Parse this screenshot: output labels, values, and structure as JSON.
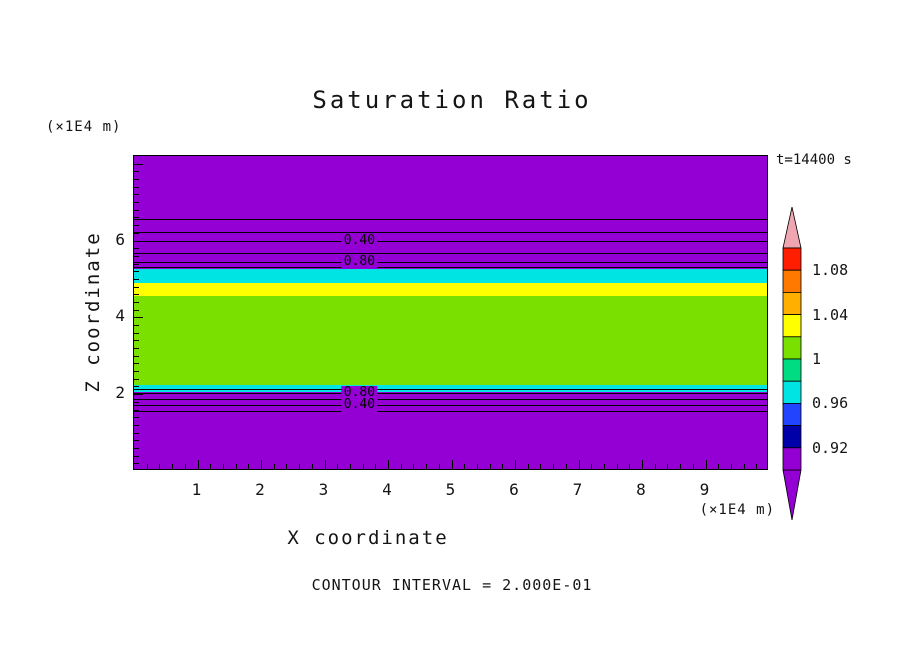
{
  "chart_data": {
    "type": "heatmap",
    "title": "Saturation Ratio",
    "xlabel": "X coordinate",
    "ylabel": "Z coordinate",
    "x_units": "(×1E4 m)",
    "z_units": "(×1E4 m)",
    "time_annotation": "t=14400 s",
    "contour_interval_text": "CONTOUR INTERVAL = 2.000E-01",
    "contour_interval": 0.2,
    "xlim": [
      0,
      10
    ],
    "zlim": [
      0,
      8.2
    ],
    "x_ticks": [
      1,
      2,
      3,
      4,
      5,
      6,
      7,
      8,
      9
    ],
    "z_ticks": [
      2,
      4,
      6
    ],
    "minor_tick_step": 0.2,
    "grid": false,
    "bands": [
      {
        "z_from": 5.25,
        "z_to": 8.2,
        "value": "< 0.90",
        "color": "#9400D3"
      },
      {
        "z_from": 4.9,
        "z_to": 5.25,
        "value": "0.96 - 0.98",
        "color": "#00E4E4"
      },
      {
        "z_from": 4.55,
        "z_to": 4.9,
        "value": "1.02 - 1.04",
        "color": "#FFFF00"
      },
      {
        "z_from": 2.25,
        "z_to": 4.55,
        "value": "1.00 - 1.02",
        "color": "#79E000"
      },
      {
        "z_from": 2.05,
        "z_to": 2.25,
        "value": "0.96 - 0.98",
        "color": "#00E4E4"
      },
      {
        "z_from": 0.0,
        "z_to": 2.05,
        "value": "< 0.90",
        "color": "#9400D3"
      }
    ],
    "contour_lines": [
      {
        "z": 6.56,
        "value": 0.2
      },
      {
        "z": 6.22,
        "value": 0.3
      },
      {
        "z": 5.99,
        "value": 0.4
      },
      {
        "z": 5.67,
        "value": 0.6
      },
      {
        "z": 5.44,
        "value": 0.8
      },
      {
        "z": 5.31,
        "value": 1.0
      },
      {
        "z": 2.13,
        "value": 1.0
      },
      {
        "z": 2.03,
        "value": 0.8
      },
      {
        "z": 1.87,
        "value": 0.6
      },
      {
        "z": 1.72,
        "value": 0.4
      },
      {
        "z": 1.56,
        "value": 0.2
      }
    ],
    "contour_labels": [
      {
        "text": "0.40",
        "x": 3.55,
        "z": 5.99,
        "bg": "#9400D3"
      },
      {
        "text": "0.80",
        "x": 3.55,
        "z": 5.44,
        "bg": "#9400D3"
      },
      {
        "text": "0.80",
        "x": 3.55,
        "z": 2.03,
        "bg": "#9400D3"
      },
      {
        "text": "0.40",
        "x": 3.55,
        "z": 1.72,
        "bg": "#9400D3"
      }
    ],
    "colorbar": {
      "min": 0.9,
      "max": 1.1,
      "over_color": "#EFA6B0",
      "under_color": "#9400D3",
      "cells": [
        {
          "from": 1.08,
          "to": 1.1,
          "color": "#FF1E00"
        },
        {
          "from": 1.06,
          "to": 1.08,
          "color": "#FF7800"
        },
        {
          "from": 1.04,
          "to": 1.06,
          "color": "#FFAF00"
        },
        {
          "from": 1.02,
          "to": 1.04,
          "color": "#FFFF00"
        },
        {
          "from": 1.0,
          "to": 1.02,
          "color": "#79E000"
        },
        {
          "from": 0.98,
          "to": 1.0,
          "color": "#00DC82"
        },
        {
          "from": 0.96,
          "to": 0.98,
          "color": "#00E4E4"
        },
        {
          "from": 0.94,
          "to": 0.96,
          "color": "#2244FF"
        },
        {
          "from": 0.92,
          "to": 0.94,
          "color": "#0000A8"
        },
        {
          "from": 0.9,
          "to": 0.92,
          "color": "#9400D3"
        }
      ],
      "labels": [
        {
          "text": "1.08",
          "value": 1.08
        },
        {
          "text": "1.04",
          "value": 1.04
        },
        {
          "text": "1",
          "value": 1.0
        },
        {
          "text": "0.96",
          "value": 0.96
        },
        {
          "text": "0.92",
          "value": 0.92
        }
      ]
    }
  }
}
